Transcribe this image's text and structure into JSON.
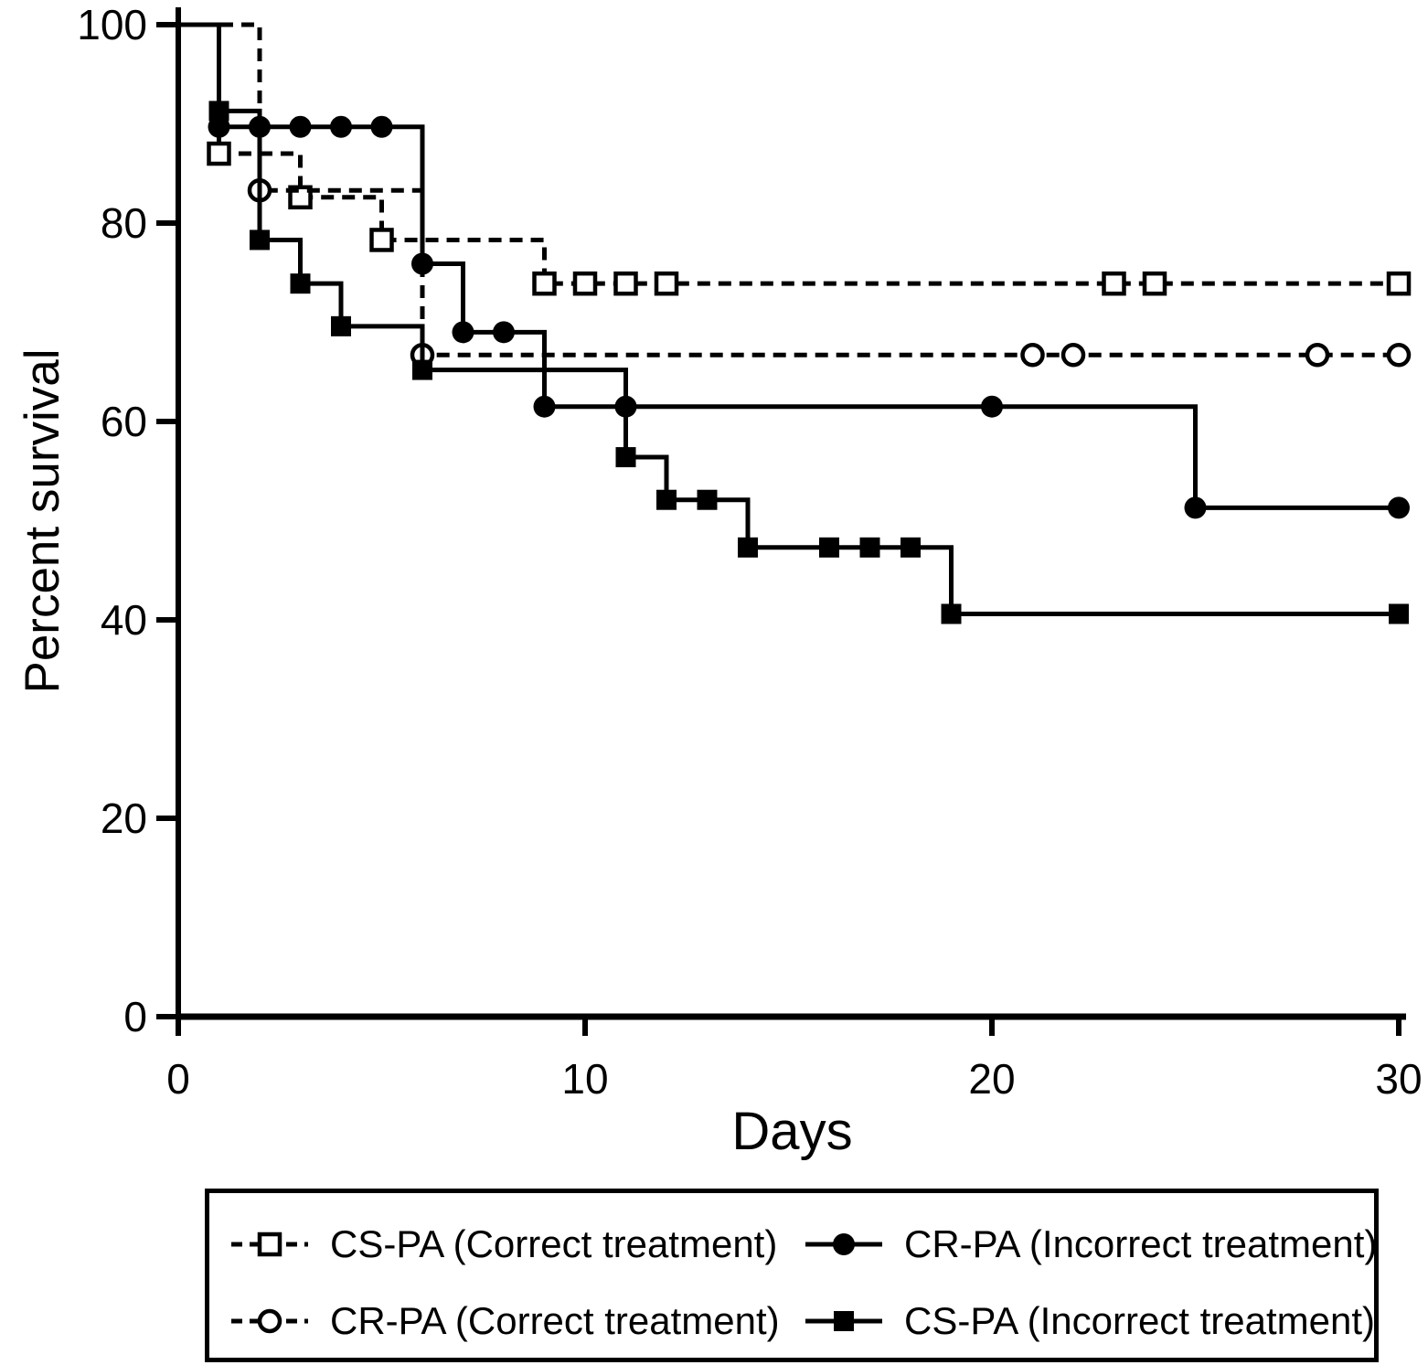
{
  "figure": {
    "background": "#ffffff",
    "ink": "#000000"
  },
  "chart_data": {
    "type": "line",
    "subtype": "kaplan-meier-step-curve",
    "title": "",
    "xlabel": "Days",
    "ylabel": "Percent survival",
    "xlim": [
      0,
      30
    ],
    "ylim": [
      0,
      100
    ],
    "xticks": [
      0,
      10,
      20,
      30
    ],
    "yticks": [
      0,
      20,
      40,
      60,
      80,
      100
    ],
    "grid": false,
    "legend_position": "bottom-box",
    "series": [
      {
        "name": "CS-PA (Correct treatment)",
        "line": "dashed",
        "marker": "open-square",
        "color": "#000000",
        "steps": [
          [
            0,
            100
          ],
          [
            1,
            87
          ],
          [
            3,
            82.6
          ],
          [
            5,
            78.3
          ],
          [
            9,
            73.9
          ],
          [
            30,
            73.9
          ]
        ],
        "markers": [
          [
            1,
            87
          ],
          [
            3,
            82.6
          ],
          [
            5,
            78.3
          ],
          [
            9,
            73.9
          ],
          [
            10,
            73.9
          ],
          [
            11,
            73.9
          ],
          [
            12,
            73.9
          ],
          [
            23,
            73.9
          ],
          [
            24,
            73.9
          ],
          [
            30,
            73.9
          ]
        ]
      },
      {
        "name": "CR-PA (Correct treatment)",
        "line": "dashed",
        "marker": "open-circle",
        "color": "#000000",
        "steps": [
          [
            0,
            100
          ],
          [
            2,
            83.3
          ],
          [
            6,
            66.7
          ],
          [
            30,
            66.7
          ]
        ],
        "markers": [
          [
            2,
            83.3
          ],
          [
            6,
            66.7
          ],
          [
            21,
            66.7
          ],
          [
            22,
            66.7
          ],
          [
            28,
            66.7
          ],
          [
            30,
            66.7
          ]
        ]
      },
      {
        "name": "CR-PA (Incorrect treatment)",
        "line": "solid",
        "marker": "filled-circle",
        "color": "#000000",
        "steps": [
          [
            0,
            100
          ],
          [
            1,
            89.7
          ],
          [
            6,
            75.9
          ],
          [
            7,
            69
          ],
          [
            9,
            61.5
          ],
          [
            25,
            51.3
          ],
          [
            30,
            51.3
          ]
        ],
        "markers": [
          [
            1,
            89.7
          ],
          [
            2,
            89.7
          ],
          [
            3,
            89.7
          ],
          [
            4,
            89.7
          ],
          [
            5,
            89.7
          ],
          [
            6,
            75.9
          ],
          [
            7,
            69
          ],
          [
            8,
            69
          ],
          [
            9,
            61.5
          ],
          [
            11,
            61.5
          ],
          [
            20,
            61.5
          ],
          [
            25,
            51.3
          ],
          [
            30,
            51.3
          ]
        ]
      },
      {
        "name": "CS-PA (Incorrect treatment)",
        "line": "solid",
        "marker": "filled-square",
        "color": "#000000",
        "steps": [
          [
            0,
            100
          ],
          [
            1,
            91.3
          ],
          [
            2,
            78.3
          ],
          [
            3,
            73.9
          ],
          [
            4,
            69.6
          ],
          [
            6,
            65.2
          ],
          [
            11,
            56.4
          ],
          [
            12,
            52.1
          ],
          [
            14,
            47.3
          ],
          [
            19,
            40.6
          ],
          [
            30,
            40.6
          ]
        ],
        "markers": [
          [
            1,
            91.3
          ],
          [
            2,
            78.3
          ],
          [
            3,
            73.9
          ],
          [
            4,
            69.6
          ],
          [
            6,
            65.2
          ],
          [
            11,
            56.4
          ],
          [
            12,
            52.1
          ],
          [
            13,
            52.1
          ],
          [
            14,
            47.3
          ],
          [
            16,
            47.3
          ],
          [
            17,
            47.3
          ],
          [
            18,
            47.3
          ],
          [
            19,
            40.6
          ],
          [
            30,
            40.6
          ]
        ]
      }
    ]
  }
}
